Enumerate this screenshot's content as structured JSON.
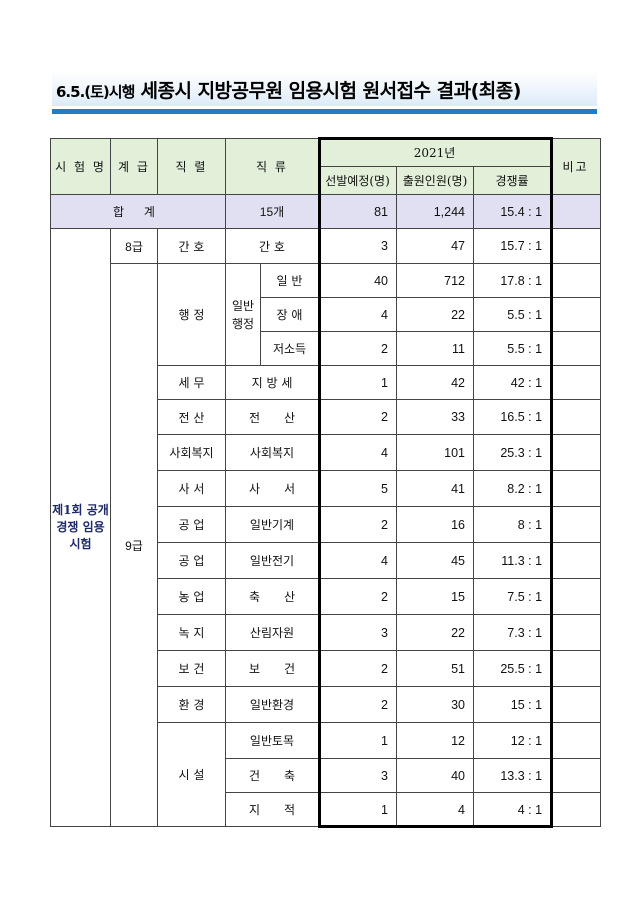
{
  "title": {
    "prefix": "6.5.(토)시행",
    "main": "세종시 지방공무원 임용시험 원서접수 결과(최종)"
  },
  "header": {
    "exam_name": "시 험 명",
    "grade": "계 급",
    "series": "직 렬",
    "category": "직 류",
    "year": "2021년",
    "planned": "선발예정(명)",
    "applicants": "출원인원(명)",
    "ratio": "경쟁률",
    "note": "비고"
  },
  "total": {
    "label": "합 계",
    "categories": "15개",
    "planned": "81",
    "applicants": "1,244",
    "ratio": "15.4 : 1"
  },
  "exam_name": "제1회 공개경쟁 임용시험",
  "grades": [
    "8급",
    "9급"
  ],
  "admin_group": "일반행정",
  "rows": [
    {
      "series": "간 호",
      "category": "간 호",
      "planned": "3",
      "applicants": "47",
      "ratio": "15.7 : 1"
    },
    {
      "series": "행 정",
      "category": "일 반",
      "planned": "40",
      "applicants": "712",
      "ratio": "17.8 : 1"
    },
    {
      "series": "",
      "category": "장 애",
      "planned": "4",
      "applicants": "22",
      "ratio": "5.5 : 1"
    },
    {
      "series": "",
      "category": "저소득",
      "planned": "2",
      "applicants": "11",
      "ratio": "5.5 : 1"
    },
    {
      "series": "세 무",
      "category": "지 방 세",
      "planned": "1",
      "applicants": "42",
      "ratio": "42 : 1"
    },
    {
      "series": "전 산",
      "category": "전　　산",
      "planned": "2",
      "applicants": "33",
      "ratio": "16.5 : 1"
    },
    {
      "series": "사회복지",
      "category": "사회복지",
      "planned": "4",
      "applicants": "101",
      "ratio": "25.3 : 1"
    },
    {
      "series": "사 서",
      "category": "사　　서",
      "planned": "5",
      "applicants": "41",
      "ratio": "8.2 : 1"
    },
    {
      "series": "공 업",
      "category": "일반기계",
      "planned": "2",
      "applicants": "16",
      "ratio": "8 : 1"
    },
    {
      "series": "공 업",
      "category": "일반전기",
      "planned": "4",
      "applicants": "45",
      "ratio": "11.3 : 1"
    },
    {
      "series": "농 업",
      "category": "축　　산",
      "planned": "2",
      "applicants": "15",
      "ratio": "7.5 : 1"
    },
    {
      "series": "녹 지",
      "category": "산림자원",
      "planned": "3",
      "applicants": "22",
      "ratio": "7.3 : 1"
    },
    {
      "series": "보 건",
      "category": "보　　건",
      "planned": "2",
      "applicants": "51",
      "ratio": "25.5 : 1"
    },
    {
      "series": "환 경",
      "category": "일반환경",
      "planned": "2",
      "applicants": "30",
      "ratio": "15 : 1"
    },
    {
      "series": "시 설",
      "category": "일반토목",
      "planned": "1",
      "applicants": "12",
      "ratio": "12 : 1"
    },
    {
      "series": "",
      "category": "건　　축",
      "planned": "3",
      "applicants": "40",
      "ratio": "13.3 : 1"
    },
    {
      "series": "",
      "category": "지　　적",
      "planned": "1",
      "applicants": "4",
      "ratio": "4 : 1"
    }
  ]
}
